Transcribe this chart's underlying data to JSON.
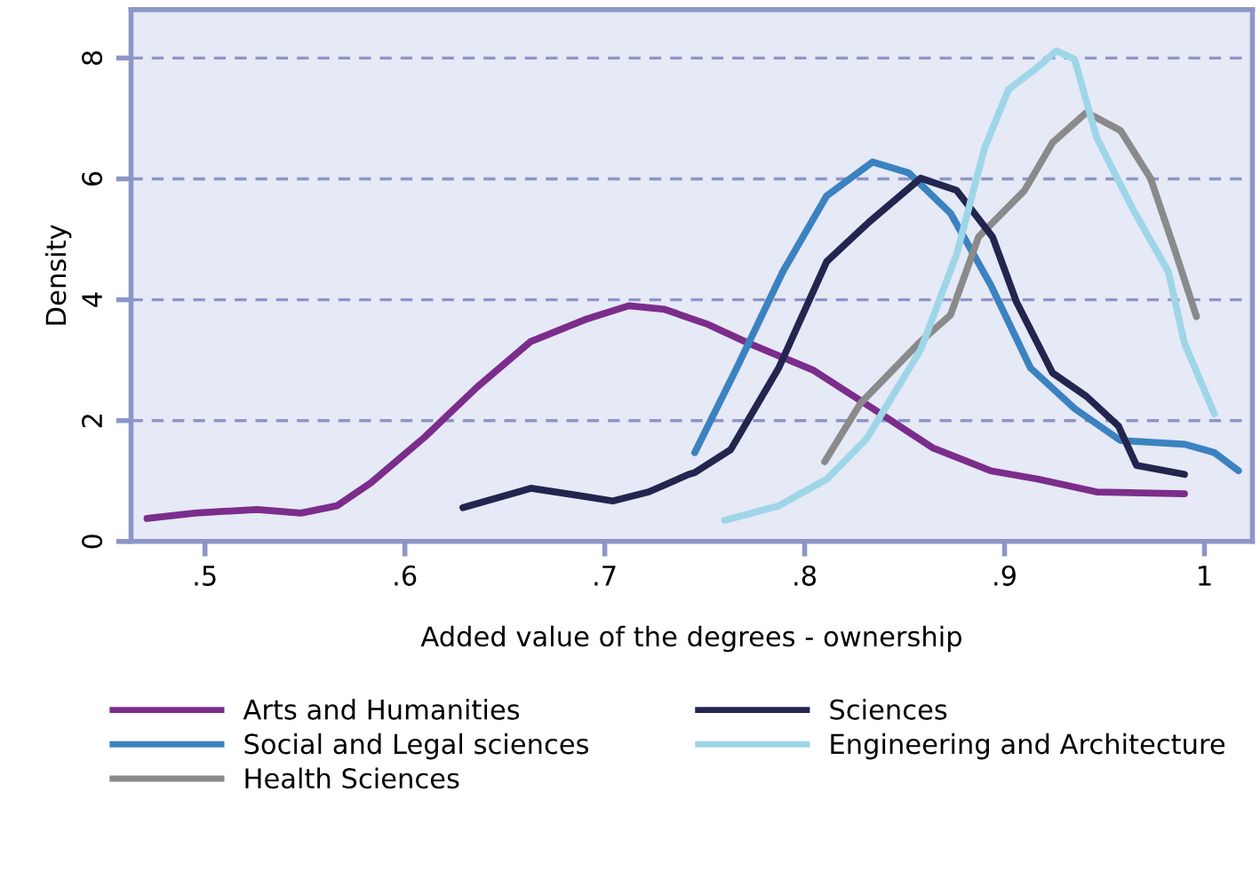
{
  "chart_data": {
    "type": "line",
    "xlabel": "Added value of the degrees - ownership",
    "ylabel": "Density",
    "xlim": [
      0.463,
      1.024
    ],
    "ylim": [
      0,
      8.8
    ],
    "xticks": [
      {
        "value": 0.5,
        "label": ".5"
      },
      {
        "value": 0.6,
        "label": ".6"
      },
      {
        "value": 0.7,
        "label": ".7"
      },
      {
        "value": 0.8,
        "label": ".8"
      },
      {
        "value": 0.9,
        "label": ".9"
      },
      1
    ],
    "yticks": [
      0,
      2,
      4,
      6,
      8
    ],
    "grid": "y",
    "legend": "bottom",
    "marker": "none",
    "line_style": "solid",
    "series": [
      {
        "name": "Arts and Humanities",
        "color": "#7b2d8b",
        "x": [
          0.471,
          0.495,
          0.526,
          0.548,
          0.566,
          0.583,
          0.61,
          0.636,
          0.663,
          0.69,
          0.712,
          0.73,
          0.751,
          0.772,
          0.804,
          0.834,
          0.864,
          0.893,
          0.917,
          0.946,
          0.99
        ],
        "values": [
          0.38,
          0.47,
          0.53,
          0.47,
          0.59,
          0.97,
          1.73,
          2.55,
          3.31,
          3.67,
          3.9,
          3.84,
          3.6,
          3.28,
          2.84,
          2.2,
          1.55,
          1.17,
          1.03,
          0.82,
          0.79
        ]
      },
      {
        "name": "Social and Legal sciences",
        "color": "#3b82c0",
        "x": [
          0.745,
          0.766,
          0.789,
          0.811,
          0.834,
          0.852,
          0.873,
          0.893,
          0.913,
          0.935,
          0.958,
          0.99,
          1.005,
          1.017
        ],
        "values": [
          1.47,
          2.87,
          4.46,
          5.72,
          6.28,
          6.1,
          5.43,
          4.25,
          2.87,
          2.2,
          1.67,
          1.61,
          1.47,
          1.17
        ]
      },
      {
        "name": "Health Sciences",
        "color": "#8a8a8a",
        "x": [
          0.81,
          0.828,
          0.858,
          0.873,
          0.887,
          0.91,
          0.924,
          0.941,
          0.958,
          0.973,
          0.985,
          0.996
        ],
        "values": [
          1.32,
          2.29,
          3.31,
          3.75,
          5.04,
          5.81,
          6.6,
          7.1,
          6.8,
          6.01,
          4.84,
          3.72
        ]
      },
      {
        "name": "Sciences",
        "color": "#22264f",
        "x": [
          0.629,
          0.663,
          0.687,
          0.704,
          0.722,
          0.742,
          0.745,
          0.763,
          0.787,
          0.811,
          0.832,
          0.858,
          0.876,
          0.894,
          0.906,
          0.924,
          0.941,
          0.957,
          0.966,
          0.99
        ],
        "values": [
          0.56,
          0.88,
          0.76,
          0.67,
          0.82,
          1.11,
          1.14,
          1.52,
          2.87,
          4.63,
          5.28,
          6.01,
          5.81,
          5.04,
          3.96,
          2.79,
          2.4,
          1.91,
          1.26,
          1.11
        ]
      },
      {
        "name": "Engineering and Architecture",
        "color": "#9ed6e8",
        "x": [
          0.76,
          0.787,
          0.811,
          0.831,
          0.858,
          0.876,
          0.89,
          0.902,
          0.917,
          0.926,
          0.935,
          0.946,
          0.964,
          0.982,
          0.99,
          1.005
        ],
        "values": [
          0.35,
          0.59,
          1.03,
          1.7,
          3.17,
          4.75,
          6.51,
          7.48,
          7.86,
          8.12,
          7.98,
          6.69,
          5.51,
          4.46,
          3.28,
          2.11
        ]
      }
    ]
  }
}
